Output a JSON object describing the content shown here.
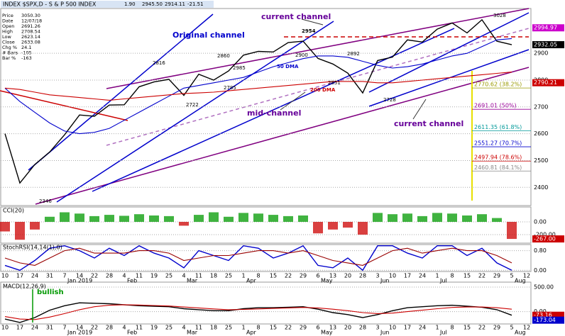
{
  "header": {
    "title": "INDEX $SPX,D - S & P 500 INDEX",
    "quote": [
      "1.90",
      "2945.50",
      "2914.11",
      "-21.51"
    ],
    "info": [
      [
        "Price",
        "3050.30"
      ],
      [
        "Date",
        "12/07/18"
      ],
      [
        "Open",
        "2691.26"
      ],
      [
        "High",
        "2708.54"
      ],
      [
        "Low",
        "2623.14"
      ],
      [
        "Close",
        "2633.08"
      ],
      [
        "Chg %",
        "24.1"
      ],
      [
        "# Bars",
        "-105"
      ],
      [
        "Bar %",
        "-163"
      ]
    ]
  },
  "chart_data": [
    {
      "type": "line",
      "ylim": [
        2332,
        3067
      ],
      "yticks": [
        2400,
        2500,
        2600,
        2700,
        2800,
        2900
      ],
      "grid": true,
      "series": [
        {
          "color": "#000000",
          "values": [
            2600,
            2416,
            2485,
            2532,
            2596,
            2670,
            2665,
            2707,
            2708,
            2775,
            2793,
            2803,
            2743,
            2822,
            2800,
            2834,
            2893,
            2907,
            2905,
            2940,
            2945,
            2881,
            2860,
            2826,
            2752,
            2873,
            2886,
            2950,
            2942,
            2990,
            3013,
            2976,
            3025,
            2945,
            2932,
            null
          ]
        },
        {
          "name": "50 DMA",
          "color": "#0000cc",
          "values": [
            2770,
            2720,
            2680,
            2640,
            2610,
            2600,
            2605,
            2620,
            2650,
            2680,
            2710,
            2740,
            2770,
            2780,
            2790,
            2800,
            2810,
            2830,
            2850,
            2865,
            2880,
            2890,
            2890,
            2885,
            2870,
            2855,
            2845,
            2850,
            2860,
            2875,
            2890,
            2900,
            2925,
            2950,
            2955,
            null
          ]
        },
        {
          "name": "200 DMA",
          "color": "#cc0000",
          "values": [
            2770,
            2765,
            2755,
            2745,
            2740,
            2735,
            2730,
            2725,
            2730,
            2735,
            2740,
            2745,
            2750,
            2752,
            2755,
            2760,
            2765,
            2770,
            2775,
            2780,
            2785,
            2790,
            2795,
            2795,
            2795,
            2790,
            2790,
            2795,
            2800,
            2805,
            2810,
            2815,
            2820,
            2825,
            2830,
            null
          ]
        }
      ],
      "markers": {
        "values": [
          2994.97,
          2932.05,
          2790.21
        ],
        "colors": [
          "#cc00cc",
          "#000000",
          "#cc0000"
        ]
      },
      "fib_levels": {
        "values": [
          2770.62,
          2691.01,
          2611.35,
          2551.27,
          2497.94,
          2460.81
        ],
        "value_labels": [
          "2770.62 (38.2%)",
          "2691.01 (50%)",
          "2611.35 (61.8%)",
          "2551.27 (70.7%)",
          "2497.94 (78.6%)",
          "2460.81 (84.1%)"
        ],
        "colors": [
          "#999900",
          "#990099",
          "#009999",
          "#0000cc",
          "#cc0000",
          "#888888"
        ]
      },
      "annotations": [
        "current channel",
        "Original channel",
        "mid-channel",
        "current channel",
        "2954",
        "2816",
        "2860",
        "2900",
        "2985",
        "2722",
        "2785",
        "2851",
        "2892",
        "2728",
        "3028",
        "2346"
      ]
    },
    {
      "type": "bar",
      "ylim": [
        -333,
        233
      ],
      "yticks": [
        {
          "value": 0,
          "label": "0.00"
        },
        {
          "value": -200,
          "label": "-200.00"
        }
      ],
      "negative_color": "#cc0000",
      "series": [
        {
          "name": "CCI(20)",
          "color": "#009900",
          "values": [
            -150,
            -280,
            -120,
            80,
            150,
            130,
            90,
            110,
            95,
            120,
            100,
            90,
            -60,
            110,
            150,
            80,
            140,
            130,
            110,
            90,
            100,
            -180,
            -120,
            -90,
            -200,
            140,
            120,
            130,
            90,
            140,
            130,
            100,
            120,
            60,
            -267,
            null
          ]
        }
      ],
      "markers": {
        "values": [
          -267
        ],
        "value_labels": [
          "-267.00"
        ],
        "colors": [
          "#cc0000"
        ]
      }
    },
    {
      "type": "line",
      "ylim": [
        -0.05,
        1.05
      ],
      "yticks": [
        {
          "value": 0,
          "label": "0.00"
        },
        {
          "value": 0.8,
          "label": "0.80"
        }
      ],
      "grid": true,
      "categories": [
        "10",
        "17",
        "24",
        "31",
        "7",
        "14",
        "22",
        "28",
        "4",
        "11",
        "19",
        "25",
        "4",
        "11",
        "18",
        "25",
        "1",
        "8",
        "15",
        "22",
        "29",
        "6",
        "13",
        "20",
        "28",
        "3",
        "10",
        "17",
        "24",
        "1",
        "8",
        "15",
        "22",
        "29",
        "5",
        "12"
      ],
      "months": [
        "Jan 2019",
        "Feb",
        "Mar",
        "Apr",
        "May",
        "Jun",
        "Jul",
        "Aug"
      ],
      "series": [
        {
          "name": "StochRSI(14,14(1),0)",
          "color": "#0000cc",
          "values": [
            0.2,
            0,
            0.4,
            0.9,
            1,
            0.8,
            0.5,
            0.9,
            0.6,
            1,
            0.7,
            0.5,
            0.1,
            0.8,
            0.6,
            0.4,
            1,
            0.9,
            0.5,
            0.7,
            1,
            0.2,
            0.1,
            0.5,
            0,
            1,
            1,
            0.7,
            0.5,
            1,
            1,
            0.6,
            0.9,
            0.3,
            0,
            null
          ]
        },
        {
          "color": "#990000",
          "values": [
            0.5,
            0.3,
            0.2,
            0.5,
            0.8,
            0.9,
            0.7,
            0.7,
            0.7,
            0.8,
            0.8,
            0.7,
            0.4,
            0.5,
            0.6,
            0.6,
            0.7,
            0.8,
            0.8,
            0.7,
            0.8,
            0.6,
            0.4,
            0.3,
            0.2,
            0.5,
            0.8,
            0.9,
            0.7,
            0.8,
            0.9,
            0.8,
            0.8,
            0.6,
            0.3,
            null
          ]
        }
      ]
    },
    {
      "type": "line",
      "ylim": [
        -250,
        600
      ],
      "yticks": [
        {
          "value": 0,
          "label": "0.00"
        },
        {
          "value": 500,
          "label": "500.00"
        }
      ],
      "grid": true,
      "categories": [
        "10",
        "17",
        "24",
        "31",
        "7",
        "14",
        "22",
        "28",
        "4",
        "11",
        "19",
        "25",
        "4",
        "11",
        "18",
        "25",
        "1",
        "8",
        "15",
        "22",
        "29",
        "6",
        "13",
        "20",
        "28",
        "3",
        "10",
        "17",
        "24",
        "1",
        "8",
        "15",
        "22",
        "29",
        "5",
        "12"
      ],
      "months": [
        "Jan 2019",
        "Feb",
        "Mar",
        "Apr",
        "May",
        "Jun",
        "Jul",
        "Aug"
      ],
      "series": [
        {
          "name": "MACD(12,26,9)",
          "color": "#000000",
          "values": [
            -150,
            -220,
            -120,
            30,
            120,
            180,
            170,
            160,
            140,
            120,
            110,
            100,
            60,
            40,
            20,
            20,
            60,
            80,
            80,
            90,
            100,
            50,
            -20,
            -60,
            -120,
            -60,
            20,
            80,
            100,
            120,
            130,
            110,
            90,
            40,
            -73.16,
            null
          ]
        },
        {
          "color": "#cc0000",
          "values": [
            -100,
            -150,
            -160,
            -110,
            -40,
            40,
            100,
            130,
            140,
            135,
            125,
            115,
            95,
            75,
            55,
            40,
            45,
            55,
            65,
            75,
            85,
            75,
            50,
            20,
            -20,
            -40,
            -30,
            0,
            30,
            60,
            85,
            95,
            95,
            80,
            50,
            null
          ]
        }
      ],
      "markers": {
        "values": [
          -73.16,
          -173.04
        ],
        "colors": [
          "#cc0000",
          "#0000cc"
        ]
      },
      "annotations": [
        "bullish"
      ]
    }
  ]
}
